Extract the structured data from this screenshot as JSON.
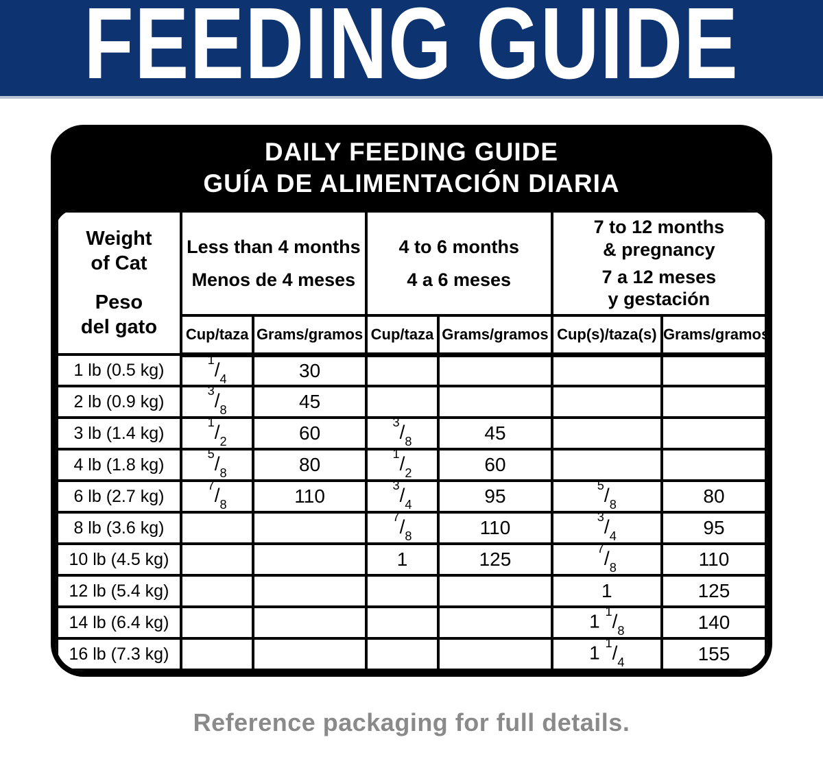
{
  "banner": {
    "title": "FEEDING GUIDE",
    "bg_color": "#0d3470",
    "text_color": "#ffffff"
  },
  "card": {
    "title_en": "DAILY FEEDING GUIDE",
    "title_es": "GUÍA DE ALIMENTACIÓN DIARIA",
    "bg_color": "#000000"
  },
  "table": {
    "weight_header": {
      "en": [
        "Weight",
        "of Cat"
      ],
      "es": [
        "Peso",
        "del gato"
      ]
    },
    "groups": [
      {
        "en": [
          "Less than 4 months"
        ],
        "es": [
          "Menos de 4 meses"
        ],
        "cup_label": "Cup/taza",
        "grams_label": "Grams/gramos"
      },
      {
        "en": [
          "4 to 6 months"
        ],
        "es": [
          "4 a 6 meses"
        ],
        "cup_label": "Cup/taza",
        "grams_label": "Grams/gramos"
      },
      {
        "en": [
          "7 to 12 months",
          "& pregnancy"
        ],
        "es": [
          "7 a 12 meses",
          "y gestación"
        ],
        "cup_label": "Cup(s)/taza(s)",
        "grams_label": "Grams/gramos"
      }
    ],
    "rows": [
      {
        "weight": "1 lb (0.5 kg)",
        "values": [
          "1/4",
          "30",
          "",
          "",
          "",
          ""
        ]
      },
      {
        "weight": "2 lb (0.9 kg)",
        "values": [
          "3/8",
          "45",
          "",
          "",
          "",
          ""
        ]
      },
      {
        "weight": "3 lb (1.4 kg)",
        "values": [
          "1/2",
          "60",
          "3/8",
          "45",
          "",
          ""
        ]
      },
      {
        "weight": "4 lb (1.8 kg)",
        "values": [
          "5/8",
          "80",
          "1/2",
          "60",
          "",
          ""
        ]
      },
      {
        "weight": "6 lb (2.7 kg)",
        "values": [
          "7/8",
          "110",
          "3/4",
          "95",
          "5/8",
          "80"
        ]
      },
      {
        "weight": "8 lb (3.6 kg)",
        "values": [
          "",
          "",
          "7/8",
          "110",
          "3/4",
          "95"
        ]
      },
      {
        "weight": "10 lb (4.5 kg)",
        "values": [
          "",
          "",
          "1",
          "125",
          "7/8",
          "110"
        ]
      },
      {
        "weight": "12 lb (5.4 kg)",
        "values": [
          "",
          "",
          "",
          "",
          "1",
          "125"
        ]
      },
      {
        "weight": "14 lb (6.4 kg)",
        "values": [
          "",
          "",
          "",
          "",
          "1 1/8",
          "140"
        ]
      },
      {
        "weight": "16 lb (7.3 kg)",
        "values": [
          "",
          "",
          "",
          "",
          "1 1/4",
          "155"
        ]
      }
    ]
  },
  "footer": {
    "note": "Reference packaging for full details.",
    "color": "#8a8a8a"
  }
}
